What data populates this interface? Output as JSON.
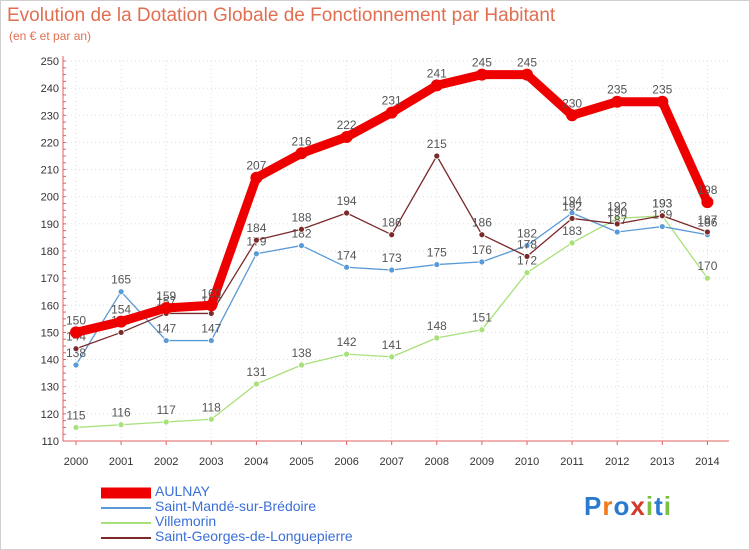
{
  "header": {
    "title": "Evolution de la Dotation Globale de Fonctionnement par Habitant",
    "subtitle": "(en € et par an)"
  },
  "logo": {
    "text": "Proxiti"
  },
  "chart_data": {
    "type": "line",
    "title": "Evolution de la Dotation Globale de Fonctionnement par Habitant",
    "subtitle": "(en € et par an)",
    "xlabel": "",
    "ylabel": "",
    "x": [
      "2000",
      "2001",
      "2002",
      "2003",
      "2004",
      "2005",
      "2006",
      "2007",
      "2008",
      "2009",
      "2010",
      "2011",
      "2012",
      "2013",
      "2014"
    ],
    "ylim": [
      110,
      250
    ],
    "yticks": [
      110,
      120,
      130,
      140,
      150,
      160,
      170,
      180,
      190,
      200,
      210,
      220,
      230,
      240,
      250
    ],
    "grid": true,
    "legend_position": "bottom-left",
    "series": [
      {
        "name": "AULNAY",
        "color": "#ee0000",
        "values": [
          150,
          154,
          159,
          160,
          207,
          216,
          222,
          231,
          241,
          245,
          245,
          230,
          235,
          235,
          198
        ]
      },
      {
        "name": "Saint-Mandé-sur-Brédoire",
        "color": "#5a9ad6",
        "values": [
          138,
          165,
          147,
          147,
          179,
          182,
          174,
          173,
          175,
          176,
          182,
          194,
          187,
          189,
          186
        ]
      },
      {
        "name": "Villemorin",
        "color": "#a8e07a",
        "values": [
          115,
          116,
          117,
          118,
          131,
          138,
          142,
          141,
          148,
          151,
          172,
          183,
          192,
          193,
          170
        ]
      },
      {
        "name": "Saint-Georges-de-Longuepierre",
        "color": "#7a2a2a",
        "values": [
          144,
          150,
          157,
          157,
          184,
          188,
          194,
          186,
          215,
          186,
          178,
          192,
          190,
          193,
          187
        ]
      }
    ]
  }
}
